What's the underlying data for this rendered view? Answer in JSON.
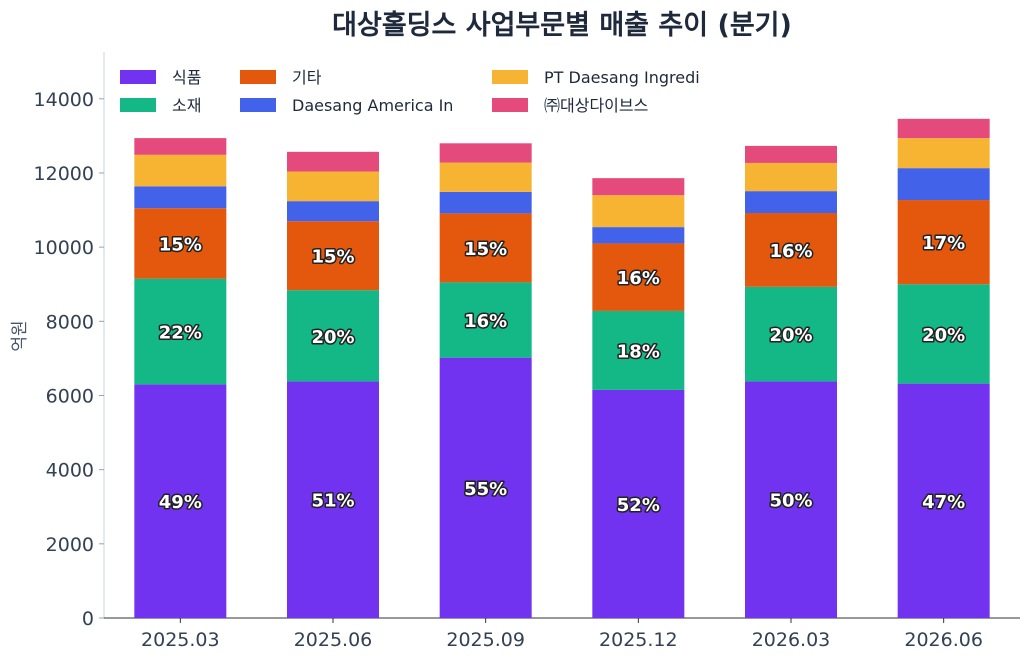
{
  "chart_data": {
    "type": "bar",
    "stacked": true,
    "title": "대상홀딩스 사업부문별 매출 추이 (분기)",
    "xlabel": "",
    "ylabel": "억원",
    "ylim": [
      0,
      15100
    ],
    "yticks": [
      0,
      2000,
      4000,
      6000,
      8000,
      10000,
      12000,
      14000
    ],
    "categories": [
      "2025.03",
      "2025.06",
      "2025.09",
      "2025.12",
      "2026.03",
      "2026.06"
    ],
    "series": [
      {
        "name": "식품",
        "color": "#7133f0",
        "values": [
          6300,
          6380,
          7020,
          6150,
          6380,
          6320
        ],
        "labels": [
          "49%",
          "51%",
          "55%",
          "52%",
          "50%",
          "47%"
        ]
      },
      {
        "name": "소재",
        "color": "#14b886",
        "values": [
          2850,
          2460,
          2030,
          2130,
          2550,
          2680
        ],
        "labels": [
          "22%",
          "20%",
          "16%",
          "18%",
          "20%",
          "20%"
        ]
      },
      {
        "name": "기타",
        "color": "#e4580e",
        "values": [
          1900,
          1860,
          1860,
          1820,
          1990,
          2270
        ],
        "labels": [
          "15%",
          "15%",
          "15%",
          "16%",
          "16%",
          "17%"
        ]
      },
      {
        "name": "Daesang America In",
        "color": "#4362ea",
        "values": [
          590,
          540,
          580,
          440,
          590,
          860
        ],
        "labels": []
      },
      {
        "name": "PT Daesang Ingredi",
        "color": "#f7b432",
        "values": [
          850,
          800,
          790,
          860,
          760,
          810
        ],
        "labels": []
      },
      {
        "name": "㈜대상다이브스",
        "color": "#e54a7d",
        "values": [
          450,
          530,
          520,
          460,
          460,
          520
        ],
        "labels": []
      }
    ],
    "legend_position": "top-left",
    "grid": false
  }
}
